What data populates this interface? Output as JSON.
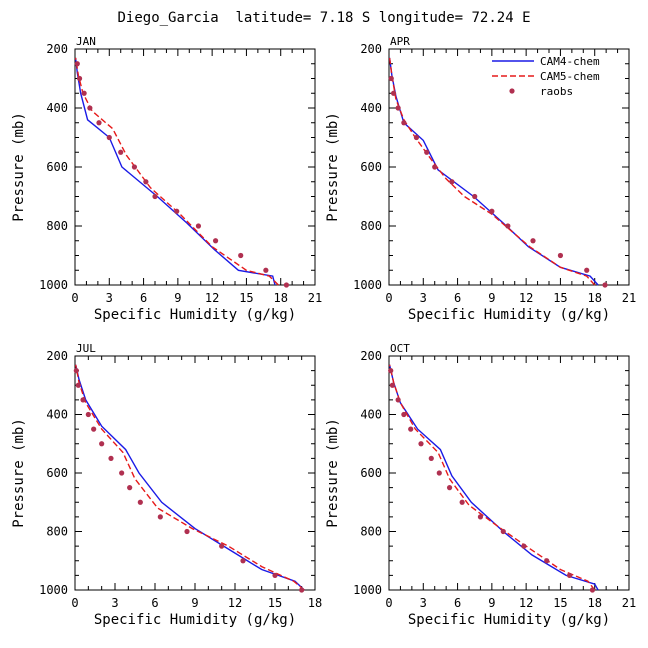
{
  "figure": {
    "title": "Diego_Garcia  latitude= 7.18 S longitude= 72.24 E",
    "legend": [
      {
        "label": "CAM4-chem",
        "color": "#1a1ae6",
        "style": "solid"
      },
      {
        "label": "CAM5-chem",
        "color": "#e61a1a",
        "style": "dashed"
      },
      {
        "label": "raobs",
        "color": "#b03050",
        "style": "dots"
      }
    ]
  },
  "chart_data": [
    {
      "type": "line",
      "panel": "JAN",
      "xlabel": "Specific Humidity (g/kg)",
      "ylabel": "Pressure (mb)",
      "xlim": [
        0,
        21
      ],
      "ylim": [
        1000,
        200
      ],
      "y_inverted": true,
      "x_ticks": [
        "0",
        "3",
        "6",
        "9",
        "12",
        "15",
        "18",
        "21"
      ],
      "y_ticks": [
        "200",
        "400",
        "600",
        "800",
        "1000"
      ],
      "series": [
        {
          "name": "CAM4-chem",
          "x": [
            17.5,
            17.3,
            14.3,
            12.2,
            9.8,
            7.2,
            4.1,
            3.0,
            1.1,
            0.5,
            0.2,
            0.05
          ],
          "y": [
            1000,
            970,
            950,
            880,
            790,
            700,
            600,
            500,
            440,
            350,
            280,
            230
          ]
        },
        {
          "name": "CAM5-chem",
          "x": [
            17.8,
            17.0,
            15.0,
            12.0,
            9.2,
            6.6,
            4.5,
            3.3,
            1.5,
            0.7,
            0.3,
            0.05
          ],
          "y": [
            1000,
            970,
            950,
            870,
            760,
            670,
            560,
            470,
            410,
            350,
            290,
            230
          ]
        },
        {
          "name": "raobs",
          "x": [
            18.5,
            16.7,
            14.5,
            12.3,
            10.8,
            8.9,
            7.0,
            6.2,
            5.2,
            4.0,
            3.0,
            2.1,
            1.3,
            0.8,
            0.4,
            0.2
          ],
          "y": [
            1000,
            950,
            900,
            850,
            800,
            750,
            700,
            650,
            600,
            550,
            500,
            450,
            400,
            350,
            300,
            250
          ]
        }
      ]
    },
    {
      "type": "line",
      "panel": "APR",
      "xlabel": "Specific Humidity (g/kg)",
      "ylabel": "Pressure (mb)",
      "xlim": [
        0,
        21
      ],
      "ylim": [
        1000,
        200
      ],
      "y_inverted": true,
      "x_ticks": [
        "0",
        "3",
        "6",
        "9",
        "12",
        "15",
        "18",
        "21"
      ],
      "y_ticks": [
        "200",
        "400",
        "600",
        "800",
        "1000"
      ],
      "series": [
        {
          "name": "CAM4-chem",
          "x": [
            18.3,
            17.6,
            15.0,
            12.2,
            10.0,
            7.4,
            4.3,
            3.0,
            1.3,
            0.6,
            0.25,
            0.05
          ],
          "y": [
            1000,
            970,
            940,
            870,
            790,
            700,
            610,
            510,
            450,
            360,
            290,
            230
          ]
        },
        {
          "name": "CAM5-chem",
          "x": [
            18.0,
            17.3,
            15.0,
            12.3,
            9.0,
            6.6,
            5.0,
            3.8,
            2.3,
            1.3,
            0.6,
            0.25,
            0.05
          ],
          "y": [
            1000,
            970,
            940,
            870,
            760,
            700,
            640,
            580,
            500,
            440,
            370,
            290,
            230
          ]
        },
        {
          "name": "raobs",
          "x": [
            18.9,
            17.3,
            15.0,
            12.6,
            10.4,
            9.0,
            7.5,
            5.5,
            4.0,
            3.3,
            2.4,
            1.3,
            0.8,
            0.4,
            0.2
          ],
          "y": [
            1000,
            950,
            900,
            850,
            800,
            750,
            700,
            650,
            600,
            550,
            500,
            450,
            400,
            350,
            300
          ]
        }
      ]
    },
    {
      "type": "line",
      "panel": "JUL",
      "xlabel": "Specific Humidity (g/kg)",
      "ylabel": "Pressure (mb)",
      "xlim": [
        0,
        18
      ],
      "ylim": [
        1000,
        200
      ],
      "y_inverted": true,
      "x_ticks": [
        "0",
        "3",
        "6",
        "9",
        "12",
        "15",
        "18"
      ],
      "y_ticks": [
        "200",
        "400",
        "600",
        "800",
        "1000"
      ],
      "series": [
        {
          "name": "CAM4-chem",
          "x": [
            17.2,
            16.5,
            14.0,
            11.5,
            9.0,
            6.5,
            4.8,
            3.8,
            2.0,
            0.8,
            0.3,
            0.05
          ],
          "y": [
            1000,
            970,
            930,
            860,
            790,
            700,
            600,
            520,
            440,
            350,
            280,
            230
          ]
        },
        {
          "name": "CAM5-chem",
          "x": [
            17.2,
            16.4,
            14.0,
            11.5,
            8.8,
            6.2,
            4.5,
            3.6,
            2.0,
            0.8,
            0.3,
            0.05
          ],
          "y": [
            1000,
            970,
            920,
            850,
            790,
            720,
            620,
            530,
            450,
            360,
            290,
            230
          ]
        },
        {
          "name": "raobs",
          "x": [
            17.0,
            15.0,
            12.6,
            11.0,
            8.4,
            6.4,
            4.9,
            4.1,
            3.5,
            2.7,
            2.0,
            1.4,
            1.0,
            0.6,
            0.25,
            0.1
          ],
          "y": [
            1000,
            950,
            900,
            850,
            800,
            750,
            700,
            650,
            600,
            550,
            500,
            450,
            400,
            350,
            300,
            250
          ]
        }
      ]
    },
    {
      "type": "line",
      "panel": "OCT",
      "xlabel": "Specific Humidity (g/kg)",
      "ylabel": "Pressure (mb)",
      "xlim": [
        0,
        21
      ],
      "ylim": [
        1000,
        200
      ],
      "y_inverted": true,
      "x_ticks": [
        "0",
        "3",
        "6",
        "9",
        "12",
        "15",
        "18",
        "21"
      ],
      "y_ticks": [
        "200",
        "400",
        "600",
        "800",
        "1000"
      ],
      "series": [
        {
          "name": "CAM4-chem",
          "x": [
            18.3,
            18.0,
            15.5,
            12.5,
            10.0,
            7.2,
            5.5,
            4.5,
            2.5,
            1.0,
            0.4,
            0.05
          ],
          "y": [
            1000,
            980,
            950,
            880,
            800,
            700,
            610,
            520,
            450,
            360,
            290,
            230
          ]
        },
        {
          "name": "CAM5-chem",
          "x": [
            18.0,
            17.4,
            15.0,
            12.0,
            9.8,
            7.0,
            5.3,
            4.3,
            2.3,
            1.0,
            0.4,
            0.05
          ],
          "y": [
            1000,
            970,
            930,
            850,
            790,
            710,
            620,
            530,
            450,
            360,
            290,
            230
          ]
        },
        {
          "name": "raobs",
          "x": [
            17.8,
            15.8,
            13.8,
            11.8,
            10.0,
            8.0,
            6.4,
            5.3,
            4.4,
            3.7,
            2.8,
            1.9,
            1.3,
            0.8,
            0.3,
            0.15
          ],
          "y": [
            1000,
            950,
            900,
            850,
            800,
            750,
            700,
            650,
            600,
            550,
            500,
            450,
            400,
            350,
            300,
            250
          ]
        }
      ]
    }
  ]
}
